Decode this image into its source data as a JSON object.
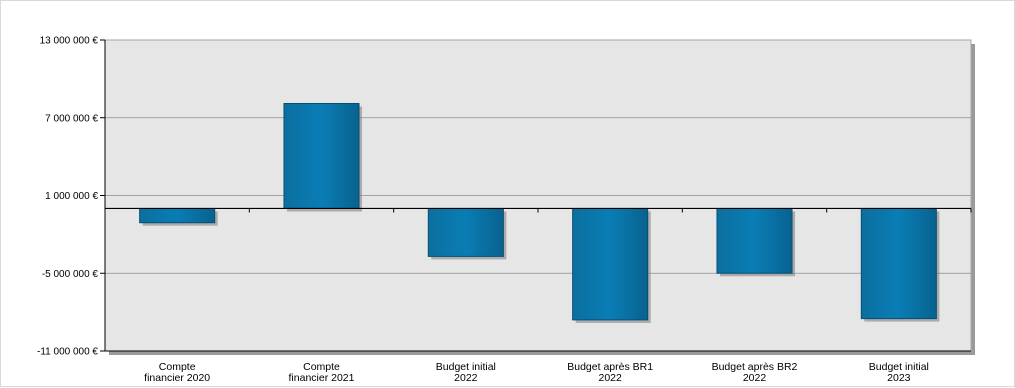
{
  "chart_data": {
    "type": "bar",
    "categories": [
      [
        "Compte",
        "financier 2020"
      ],
      [
        "Compte",
        "financier 2021"
      ],
      [
        "Budget initial",
        "2022"
      ],
      [
        "Budget après BR1",
        "2022"
      ],
      [
        "Budget après BR2",
        "2022"
      ],
      [
        "Budget initial",
        "2023"
      ]
    ],
    "series": [
      {
        "values": [
          -1100000,
          8100000,
          -3700000,
          -8600000,
          -5000000,
          -8500000
        ]
      }
    ],
    "ylim": [
      -11000000,
      13000000
    ],
    "yticks": [
      13000000,
      7000000,
      1000000,
      -5000000,
      -11000000
    ],
    "ytick_labels": [
      "13 000 000 €",
      "7 000 000 €",
      "1 000 000 €",
      "-5 000 000 €",
      "-11 000 000 €"
    ],
    "grid": true,
    "legend": "none",
    "colors": {
      "bar_fill": "#0a74a8",
      "bar_edge": "#074f73",
      "plot_bg": "#e6e6e6",
      "plot_border": "#a6a6a6",
      "grid": "#8c8c8c",
      "zero_line": "#000000"
    }
  }
}
